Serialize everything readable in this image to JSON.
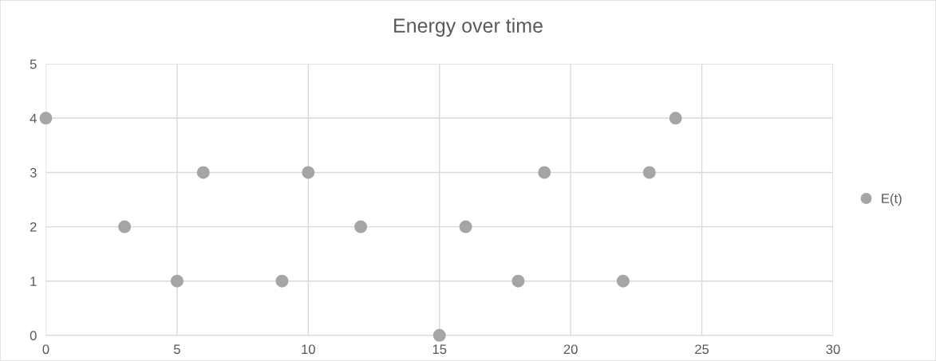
{
  "chart_data": {
    "type": "scatter",
    "title": "Energy over time",
    "x": [
      0,
      3,
      5,
      6,
      9,
      10,
      12,
      15,
      16,
      18,
      19,
      22,
      23,
      24
    ],
    "series": [
      {
        "name": "E(t)",
        "color": "#a5a5a5",
        "values": [
          4,
          2,
          1,
          3,
          1,
          3,
          2,
          0,
          2,
          1,
          3,
          1,
          3,
          4
        ]
      }
    ],
    "xlim": [
      0,
      30
    ],
    "xticks": [
      0,
      5,
      10,
      15,
      20,
      25,
      30
    ],
    "ylim": [
      0,
      5
    ],
    "yticks": [
      0,
      1,
      2,
      3,
      4,
      5
    ],
    "grid": true,
    "legend": "right",
    "marker": "circle"
  }
}
